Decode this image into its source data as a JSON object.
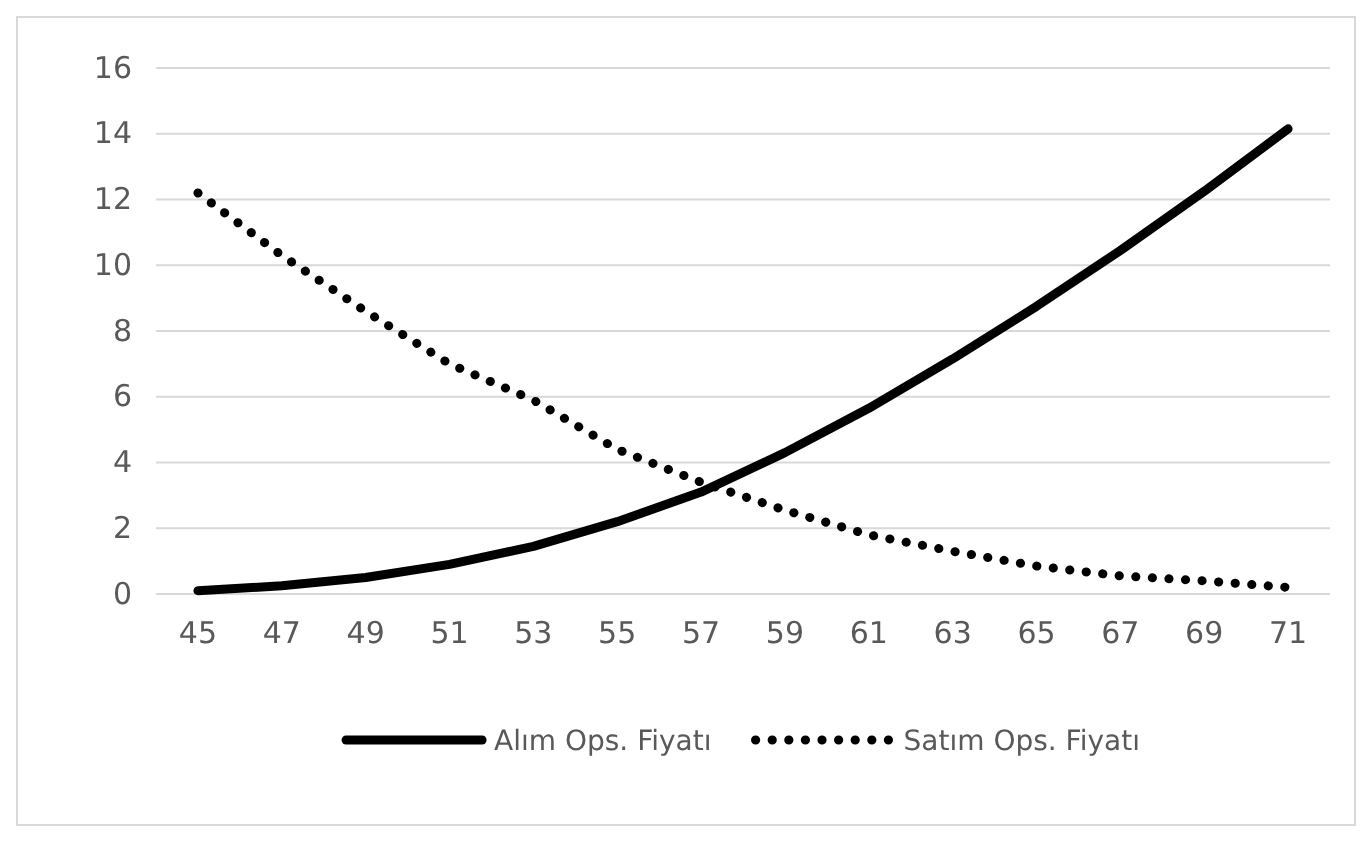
{
  "chart_data": {
    "type": "line",
    "categories": [
      "45",
      "47",
      "49",
      "51",
      "53",
      "55",
      "57",
      "59",
      "61",
      "63",
      "65",
      "67",
      "69",
      "71"
    ],
    "series": [
      {
        "name": "Alım Ops. Fiyatı",
        "color": "#000000",
        "line_style": "solid",
        "values": [
          0.1,
          0.25,
          0.5,
          0.9,
          1.45,
          2.2,
          3.1,
          4.3,
          5.65,
          7.15,
          8.75,
          10.45,
          12.25,
          14.15
        ]
      },
      {
        "name": "Satım Ops. Fiyatı",
        "color": "#000000",
        "line_style": "dotted",
        "values": [
          12.2,
          10.3,
          8.6,
          7.0,
          5.9,
          4.4,
          3.4,
          2.55,
          1.8,
          1.3,
          0.85,
          0.55,
          0.4,
          0.2
        ]
      }
    ],
    "ylim": [
      0,
      16
    ],
    "yticks": [
      0,
      2,
      4,
      6,
      8,
      10,
      12,
      14,
      16
    ],
    "grid": "y",
    "legend": "bottom",
    "marker": "none"
  }
}
